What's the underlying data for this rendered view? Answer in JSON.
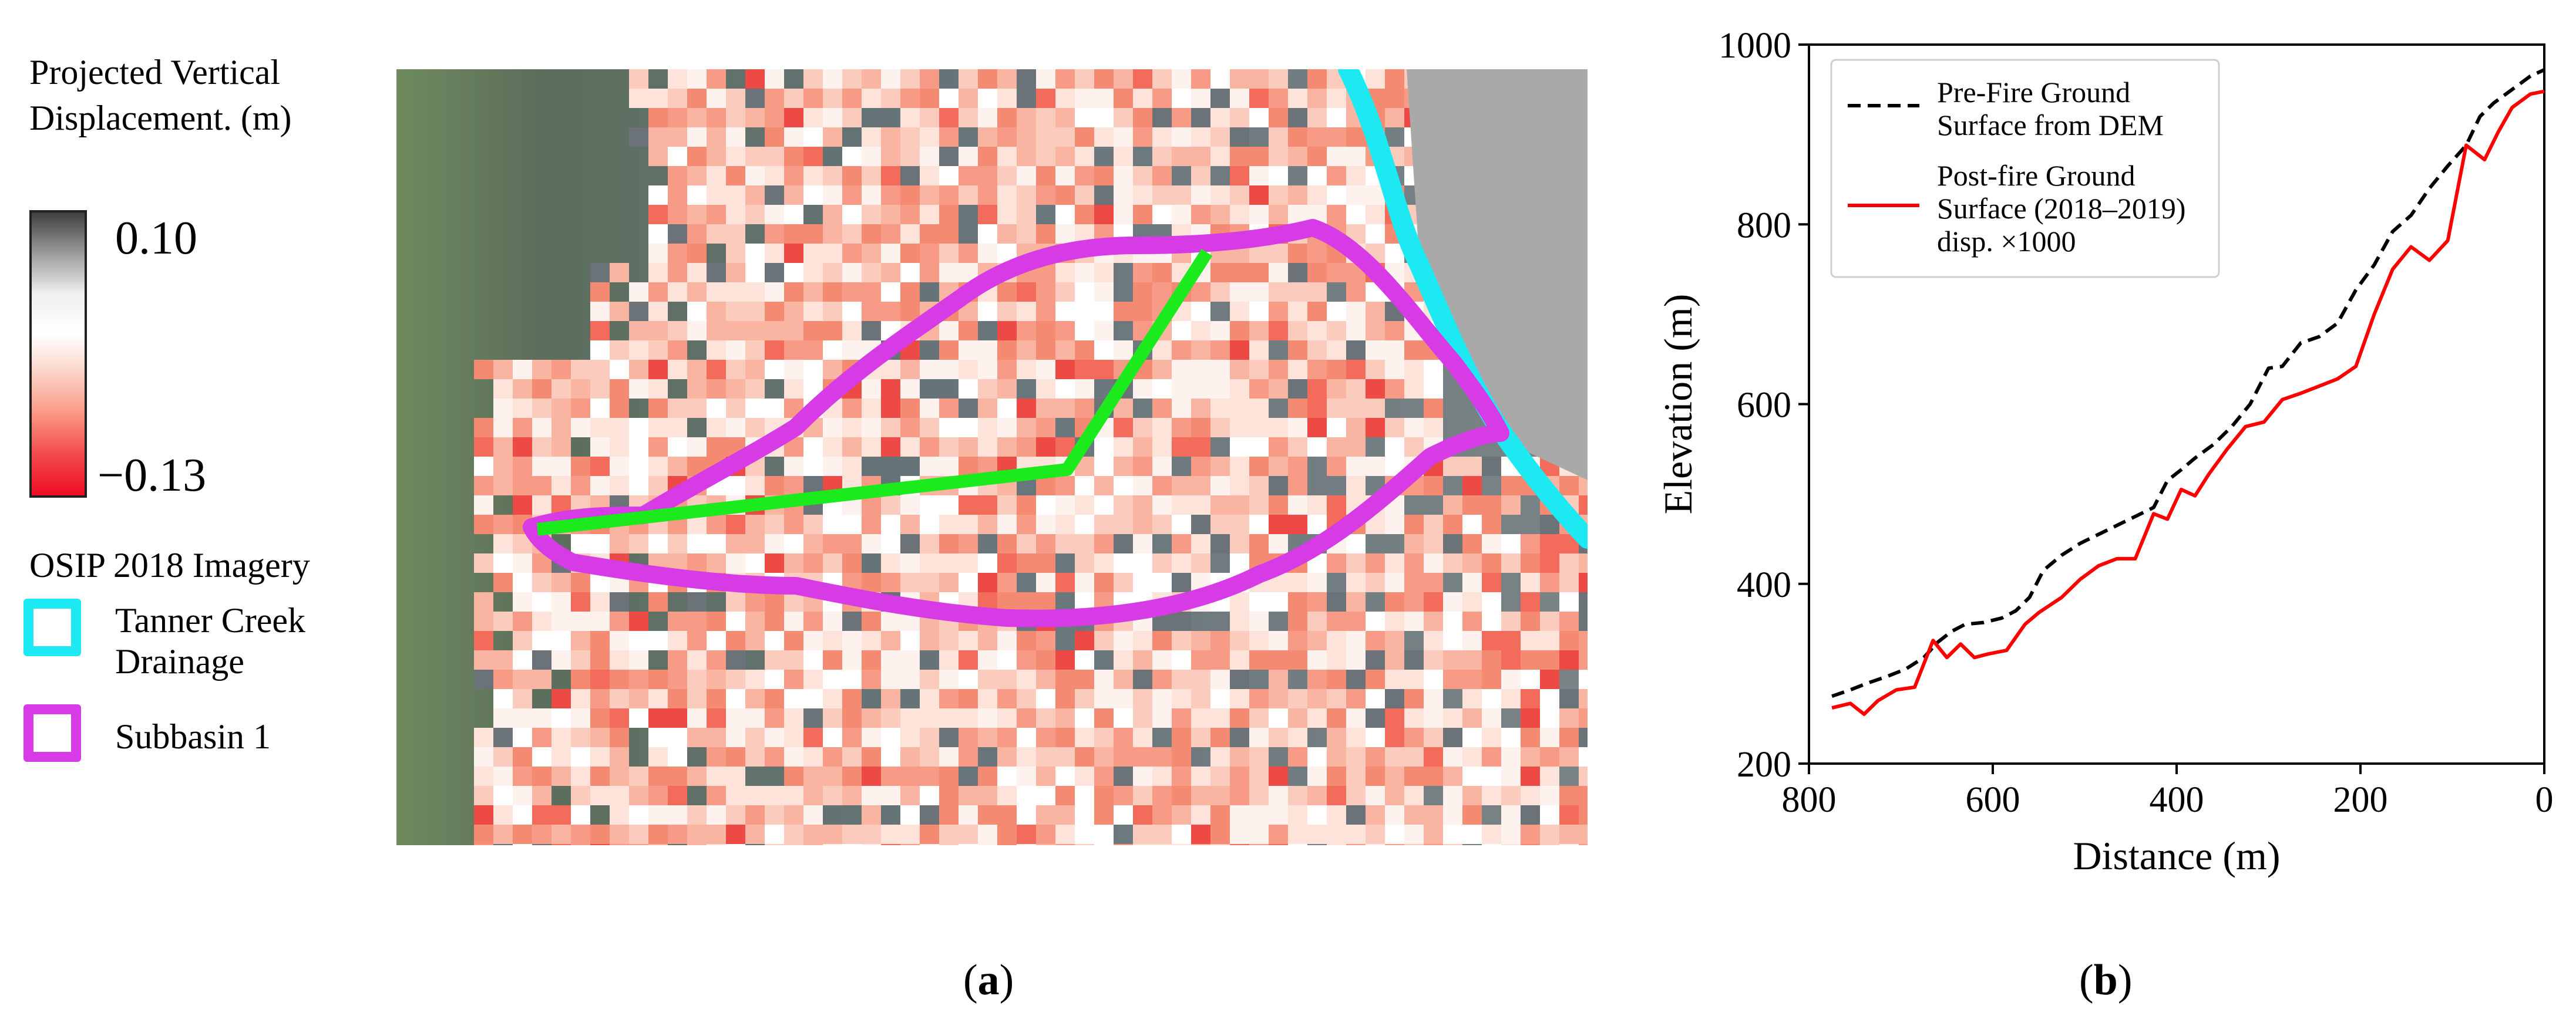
{
  "panel_a": {
    "legend": {
      "title_line1": "Projected Vertical",
      "title_line2": "Displacement. (m)",
      "colorbar_max": "0.10",
      "colorbar_min": "−0.13",
      "colorbar_colors": [
        "#3f3f3f",
        "#9a9a9a",
        "#efefef",
        "#ffffff",
        "#fbd2c6",
        "#f99682",
        "#f24a4a",
        "#ee0d24"
      ],
      "imagery_label": "OSIP 2018 Imagery",
      "items": [
        {
          "label_line1": "Tanner Creek",
          "label_line2": "Drainage",
          "color": "#1de9f2"
        },
        {
          "label_line1": "Subbasin 1",
          "label_line2": "",
          "color": "#d63be6"
        }
      ]
    },
    "map_colors": {
      "imagery": "#6a7677",
      "drainage": "#1de9f2",
      "subbasin": "#d63be6",
      "profile_line": "#1bea1d"
    }
  },
  "captions": {
    "a_open": "(",
    "a_letter": "a",
    "a_close": ")",
    "b_open": "(",
    "b_letter": "b",
    "b_close": ")"
  },
  "chart_data": {
    "type": "line",
    "title": "",
    "xlabel": "Distance (m)",
    "ylabel": "Elevation (m)",
    "xlim": [
      800,
      0
    ],
    "ylim": [
      200,
      1000
    ],
    "x_reversed": true,
    "xticks": [
      800,
      600,
      400,
      200,
      0
    ],
    "yticks": [
      200,
      400,
      600,
      800,
      1000
    ],
    "grid": false,
    "legend_position": "top-left",
    "series": [
      {
        "name": "Pre-Fire Ground Surface from DEM",
        "legend_lines": [
          "Pre-Fire Ground",
          "Surface from DEM"
        ],
        "color": "#000000",
        "dash": "dashed",
        "x": [
          775,
          755,
          735,
          715,
          695,
          675,
          660,
          645,
          630,
          610,
          590,
          575,
          560,
          545,
          525,
          505,
          485,
          465,
          445,
          425,
          410,
          395,
          380,
          360,
          340,
          320,
          300,
          285,
          265,
          245,
          225,
          205,
          185,
          165,
          145,
          125,
          105,
          85,
          70,
          55,
          35,
          15,
          0
        ],
        "values": [
          275,
          282,
          290,
          297,
          305,
          318,
          335,
          347,
          355,
          357,
          362,
          370,
          385,
          415,
          432,
          445,
          455,
          465,
          475,
          485,
          515,
          527,
          540,
          555,
          575,
          600,
          640,
          642,
          668,
          675,
          690,
          727,
          755,
          792,
          810,
          840,
          865,
          888,
          920,
          935,
          950,
          965,
          972
        ]
      },
      {
        "name": "Post-fire Ground Surface (2018–2019) disp. ×1000",
        "legend_lines": [
          "Post-fire Ground",
          "Surface (2018–2019)",
          "disp. ×1000"
        ],
        "color": "#ff0000",
        "dash": "solid",
        "x": [
          775,
          755,
          740,
          725,
          705,
          685,
          665,
          650,
          635,
          620,
          605,
          585,
          565,
          550,
          525,
          505,
          485,
          465,
          445,
          425,
          410,
          395,
          380,
          365,
          345,
          325,
          305,
          285,
          265,
          245,
          225,
          205,
          185,
          165,
          145,
          125,
          105,
          85,
          65,
          50,
          35,
          15,
          0
        ],
        "values": [
          262,
          267,
          255,
          270,
          282,
          285,
          337,
          318,
          333,
          318,
          322,
          326,
          355,
          368,
          385,
          405,
          420,
          428,
          428,
          478,
          472,
          505,
          498,
          522,
          550,
          575,
          580,
          605,
          612,
          620,
          628,
          642,
          700,
          750,
          775,
          760,
          782,
          888,
          872,
          903,
          930,
          945,
          948
        ]
      }
    ]
  }
}
